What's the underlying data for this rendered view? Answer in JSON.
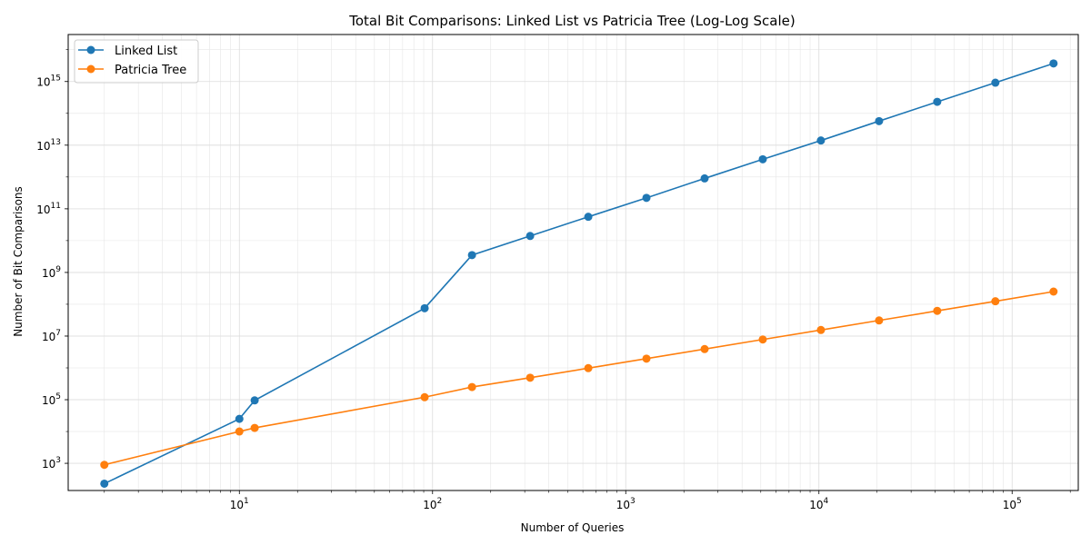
{
  "chart_data": {
    "type": "line",
    "title": "Total Bit Comparisons: Linked List vs Patricia Tree (Log-Log Scale)",
    "xlabel": "Number of Queries",
    "ylabel": "Number of Bit Comparisons",
    "x_scale": "log",
    "y_scale": "log",
    "xlim": [
      1.3,
      220000
    ],
    "ylim": [
      140,
      3e+16
    ],
    "x_major_ticks": [
      {
        "value": 10,
        "mantissa": "10",
        "exp": "1"
      },
      {
        "value": 100,
        "mantissa": "10",
        "exp": "2"
      },
      {
        "value": 1000,
        "mantissa": "10",
        "exp": "3"
      },
      {
        "value": 10000,
        "mantissa": "10",
        "exp": "4"
      },
      {
        "value": 100000,
        "mantissa": "10",
        "exp": "5"
      }
    ],
    "y_major_ticks": [
      {
        "value": 1000.0,
        "mantissa": "10",
        "exp": "3"
      },
      {
        "value": 100000.0,
        "mantissa": "10",
        "exp": "5"
      },
      {
        "value": 10000000.0,
        "mantissa": "10",
        "exp": "7"
      },
      {
        "value": 1000000000.0,
        "mantissa": "10",
        "exp": "9"
      },
      {
        "value": 100000000000.0,
        "mantissa": "10",
        "exp": "11"
      },
      {
        "value": 10000000000000.0,
        "mantissa": "10",
        "exp": "13"
      },
      {
        "value": 1000000000000000.0,
        "mantissa": "10",
        "exp": "15"
      }
    ],
    "grid": true,
    "legend_position": "top-left",
    "series": [
      {
        "name": "Linked List",
        "color": "#1f77b4",
        "x": [
          2,
          10,
          12,
          91,
          160,
          320,
          640,
          1280,
          2560,
          5120,
          10240,
          20480,
          40960,
          81920,
          163840
        ],
        "y": [
          230,
          25000,
          95000,
          75000000,
          3500000000,
          14000000000,
          56000000000,
          220000000000,
          900000000000,
          3600000000000,
          14000000000000,
          57000000000000,
          230000000000000,
          920000000000000,
          3700000000000000
        ]
      },
      {
        "name": "Patricia Tree",
        "color": "#ff7f0e",
        "x": [
          2,
          10,
          12,
          91,
          160,
          320,
          640,
          1280,
          2560,
          5120,
          10240,
          20480,
          40960,
          81920,
          163840
        ],
        "y": [
          900,
          10000,
          13000,
          120000,
          250000,
          490000,
          980000,
          1950000,
          3900000,
          7800000,
          15500000,
          31000000,
          62000000,
          124000000,
          250000000
        ]
      }
    ]
  }
}
